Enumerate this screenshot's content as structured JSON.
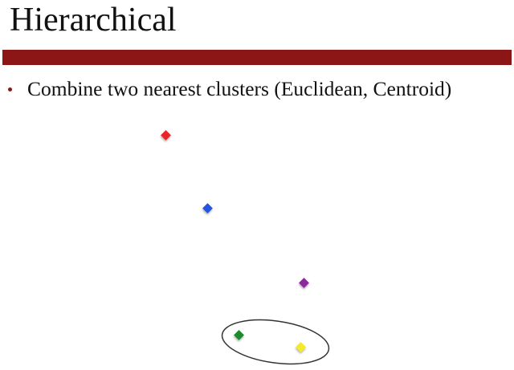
{
  "slide": {
    "title": "Hierarchical",
    "bullet": "Combine two nearest clusters (Euclidean, Centroid)"
  },
  "points": [
    {
      "name": "red-point",
      "color": "#e8262a"
    },
    {
      "name": "blue-point",
      "color": "#2255e6"
    },
    {
      "name": "purple-point",
      "color": "#8a2a9a"
    },
    {
      "name": "green-point",
      "color": "#1e8a2e"
    },
    {
      "name": "yellow-point",
      "color": "#f2ea2a"
    }
  ],
  "colors": {
    "band": "#8c1515",
    "cluster_outline": "#333333"
  }
}
